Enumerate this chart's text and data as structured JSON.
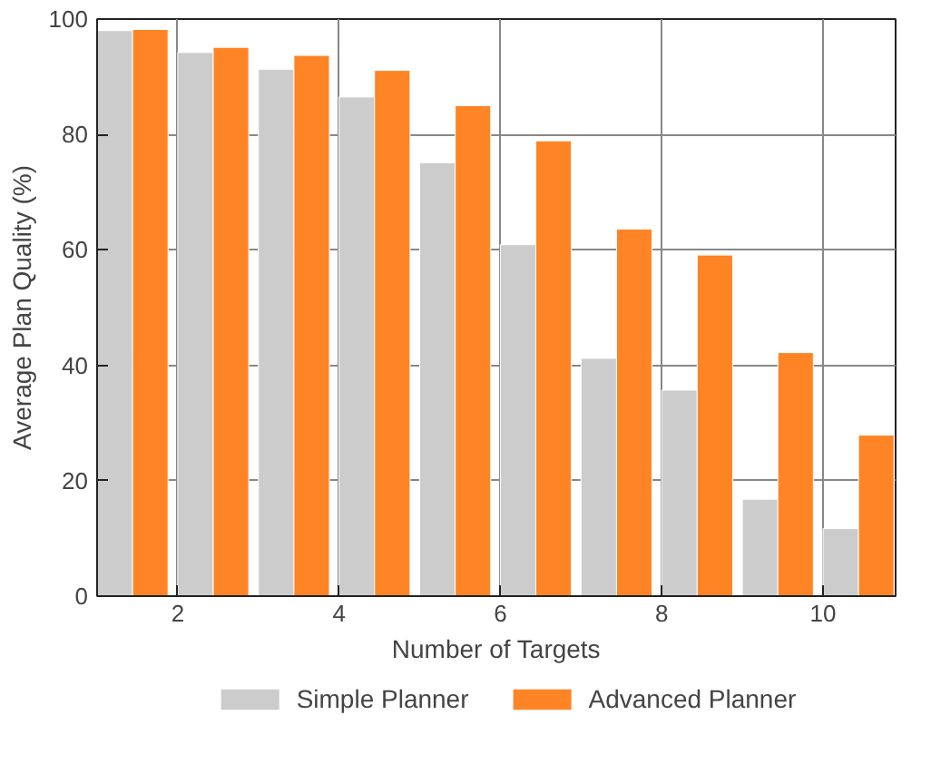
{
  "chart_data": {
    "type": "bar",
    "xlabel": "Number of Targets",
    "ylabel": "Average Plan Quality (%)",
    "x": [
      1.44,
      2.44,
      3.44,
      4.44,
      5.44,
      6.44,
      7.44,
      8.44,
      9.44,
      10.44
    ],
    "series": [
      {
        "name": "Simple Planner",
        "color": "#cccccc",
        "values": [
          98,
          94.2,
          91.3,
          86.5,
          75.1,
          60.9,
          41.2,
          35.7,
          16.8,
          11.7
        ]
      },
      {
        "name": "Advanced Planner",
        "color": "#ff8426",
        "values": [
          98.2,
          95.1,
          93.7,
          91.1,
          85,
          78.9,
          63.6,
          59.1,
          42.2,
          27.9
        ]
      }
    ],
    "xlim": [
      1,
      10.9
    ],
    "xticks": [
      2,
      4,
      6,
      8,
      10
    ],
    "ylim": [
      0,
      100
    ],
    "yticks": [
      0,
      20,
      40,
      60,
      80,
      100
    ],
    "grid": true,
    "legend": "bottom"
  }
}
